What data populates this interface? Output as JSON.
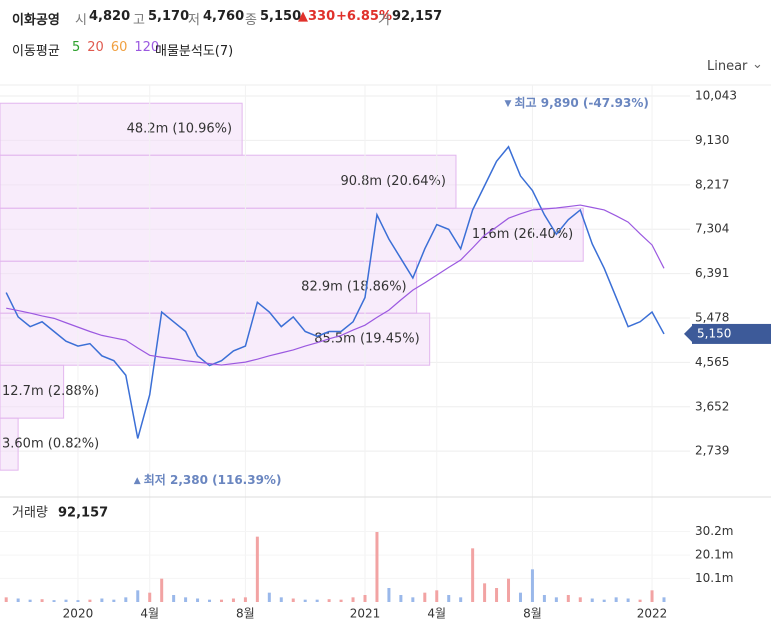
{
  "header": {
    "name": "이화공영",
    "open_label": "시",
    "open": "4,820",
    "high_label": "고",
    "high": "5,170",
    "low_label": "저",
    "low": "4,760",
    "close_label": "종",
    "close": "5,150",
    "change": "▲330",
    "change_pct": "+6.85%",
    "volume_label": "거",
    "volume": "92,157"
  },
  "ma_legend": {
    "title": "이동평균",
    "periods": [
      {
        "value": 5,
        "color": "#2ca02c"
      },
      {
        "value": 20,
        "color": "#e05a4f"
      },
      {
        "value": 60,
        "color": "#f0a040"
      },
      {
        "value": 120,
        "color": "#9b59e0"
      }
    ],
    "analysis": "매물분석도(7)",
    "scale": "Linear"
  },
  "chart_data": [
    {
      "type": "line",
      "grid": true,
      "ylim": [
        1940,
        10270
      ],
      "yticks": [
        {
          "value": 2739,
          "label": "2,739"
        },
        {
          "value": 3652,
          "label": "3,652"
        },
        {
          "value": 4565,
          "label": "4,565"
        },
        {
          "value": 5478,
          "label": "5,478"
        },
        {
          "value": 6391,
          "label": "6,391"
        },
        {
          "value": 7304,
          "label": "7,304"
        },
        {
          "value": 8217,
          "label": "8,217"
        },
        {
          "value": 9130,
          "label": "9,130"
        },
        {
          "value": 10043,
          "label": "10,043"
        }
      ],
      "series": [
        {
          "color": "#3b6fd6",
          "values": [
            6000,
            5500,
            5300,
            5400,
            5200,
            5000,
            4900,
            4950,
            4700,
            4600,
            4300,
            3000,
            3900,
            5600,
            5400,
            5200,
            4700,
            4500,
            4600,
            4800,
            4900,
            5800,
            5600,
            5300,
            5500,
            5200,
            5100,
            5200,
            5200,
            5400,
            5900,
            7600,
            7100,
            6700,
            6300,
            6900,
            7400,
            7300,
            6900,
            7700,
            8200,
            8700,
            9000,
            8400,
            8100,
            7600,
            7200,
            7500,
            7700,
            7000,
            6500,
            5900,
            5300,
            5400,
            5600,
            5150
          ]
        },
        {
          "color": "#9b59e0",
          "values": [
            5680,
            5630,
            5580,
            5520,
            5470,
            5380,
            5290,
            5200,
            5120,
            5070,
            5020,
            4860,
            4710,
            4670,
            4640,
            4600,
            4570,
            4540,
            4510,
            4540,
            4570,
            4630,
            4700,
            4760,
            4820,
            4900,
            4970,
            5050,
            5120,
            5230,
            5330,
            5490,
            5640,
            5850,
            6050,
            6200,
            6360,
            6520,
            6670,
            6920,
            7180,
            7350,
            7530,
            7620,
            7700,
            7720,
            7740,
            7770,
            7800,
            7750,
            7700,
            7580,
            7450,
            7210,
            6980,
            6500
          ]
        }
      ],
      "last_price": {
        "value": 5150,
        "label": "5,150",
        "color": "#3d5a99"
      },
      "annotations": [
        {
          "label": "최고 9,890 (-47.93%)",
          "value": 9890
        },
        {
          "label": "최저 2,380 (116.39%)",
          "value": 2380
        }
      ],
      "volume_profile": {
        "bins": [
          2348,
          3418,
          4507,
          5577,
          6646,
          7736,
          8826,
          9895
        ],
        "values": [
          0.82,
          2.88,
          19.45,
          18.86,
          26.4,
          20.64,
          10.96
        ],
        "value_labels": [
          "3.60m (0.82%)",
          "12.7m (2.88%)",
          "85.5m (19.45%)",
          "82.9m (18.86%)",
          "116m (26.40%)",
          "90.8m (20.64%)",
          "48.2m (10.96%)"
        ],
        "xlim": [
          0,
          30.6
        ],
        "color": "#f3dcf8"
      }
    },
    {
      "type": "bar",
      "title": "거래량",
      "last_volume": "92,157",
      "categories": [
        null,
        null,
        null,
        null,
        null,
        null,
        "2020",
        null,
        null,
        null,
        null,
        null,
        "4월",
        null,
        null,
        null,
        null,
        null,
        null,
        null,
        "8월",
        null,
        null,
        null,
        null,
        null,
        null,
        null,
        null,
        null,
        "2021",
        null,
        null,
        null,
        null,
        null,
        "4월",
        null,
        null,
        null,
        null,
        null,
        null,
        null,
        "8월",
        null,
        null,
        null,
        null,
        null,
        null,
        null,
        null,
        null,
        "2022",
        null
      ],
      "values": [
        2,
        1.5,
        1,
        1.2,
        0.8,
        1,
        0.8,
        1,
        1.5,
        1,
        2,
        5,
        4,
        10,
        3,
        2,
        1.5,
        1,
        1,
        1.5,
        2,
        28,
        4,
        2,
        1.5,
        1,
        1,
        1.2,
        1,
        2,
        3,
        30,
        6,
        3,
        2,
        4,
        5,
        3,
        2,
        23,
        8,
        6,
        10,
        4,
        14,
        3,
        2,
        3,
        2,
        1.5,
        1,
        2,
        1.5,
        1,
        5,
        2
      ],
      "up_color": "#f2a3a3",
      "down_color": "#9ab8ea",
      "ylim": [
        0,
        33
      ],
      "yticks": [
        {
          "value": 10.1,
          "label": "10.1m"
        },
        {
          "value": 20.1,
          "label": "20.1m"
        },
        {
          "value": 30.2,
          "label": "30.2m"
        }
      ]
    }
  ]
}
